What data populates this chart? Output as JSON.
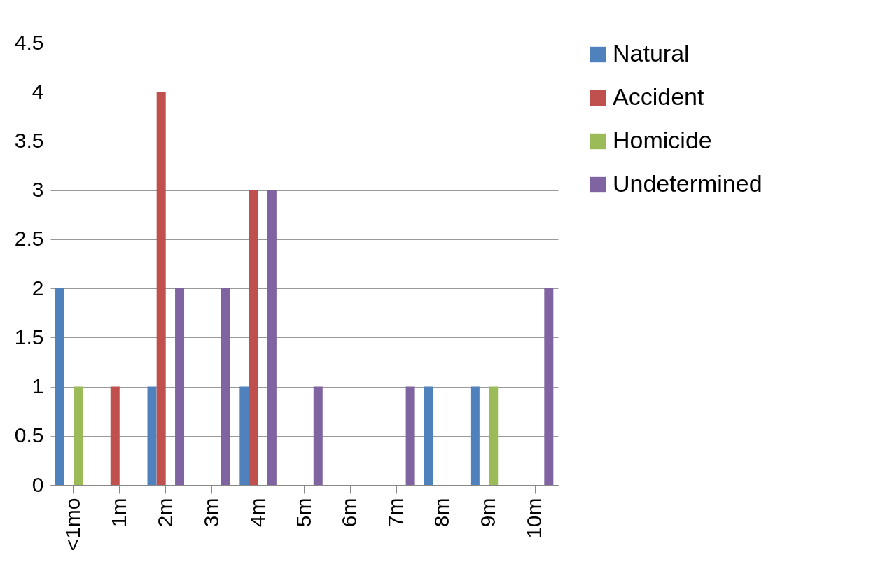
{
  "chart_data": {
    "type": "bar",
    "categories": [
      "<1mo",
      "1m",
      "2m",
      "3m",
      "4m",
      "5m",
      "6m",
      "7m",
      "8m",
      "9m",
      "10m"
    ],
    "series": [
      {
        "name": "Natural",
        "color": "#4f81bd",
        "values": [
          2,
          0,
          1,
          0,
          1,
          0,
          0,
          0,
          1,
          1,
          0
        ]
      },
      {
        "name": "Accident",
        "color": "#c0504d",
        "values": [
          0,
          1,
          4,
          0,
          3,
          0,
          0,
          0,
          0,
          0,
          0
        ]
      },
      {
        "name": "Homicide",
        "color": "#9bbb59",
        "values": [
          1,
          0,
          0,
          0,
          0,
          0,
          0,
          0,
          0,
          1,
          0
        ]
      },
      {
        "name": "Undetermined",
        "color": "#8064a2",
        "values": [
          0,
          0,
          2,
          2,
          3,
          1,
          0,
          1,
          0,
          0,
          2
        ]
      }
    ],
    "ylim": [
      0,
      4.5
    ],
    "yticks": [
      0,
      0.5,
      1,
      1.5,
      2,
      2.5,
      3,
      3.5,
      4,
      4.5
    ],
    "grid": "y",
    "legend": "right"
  }
}
